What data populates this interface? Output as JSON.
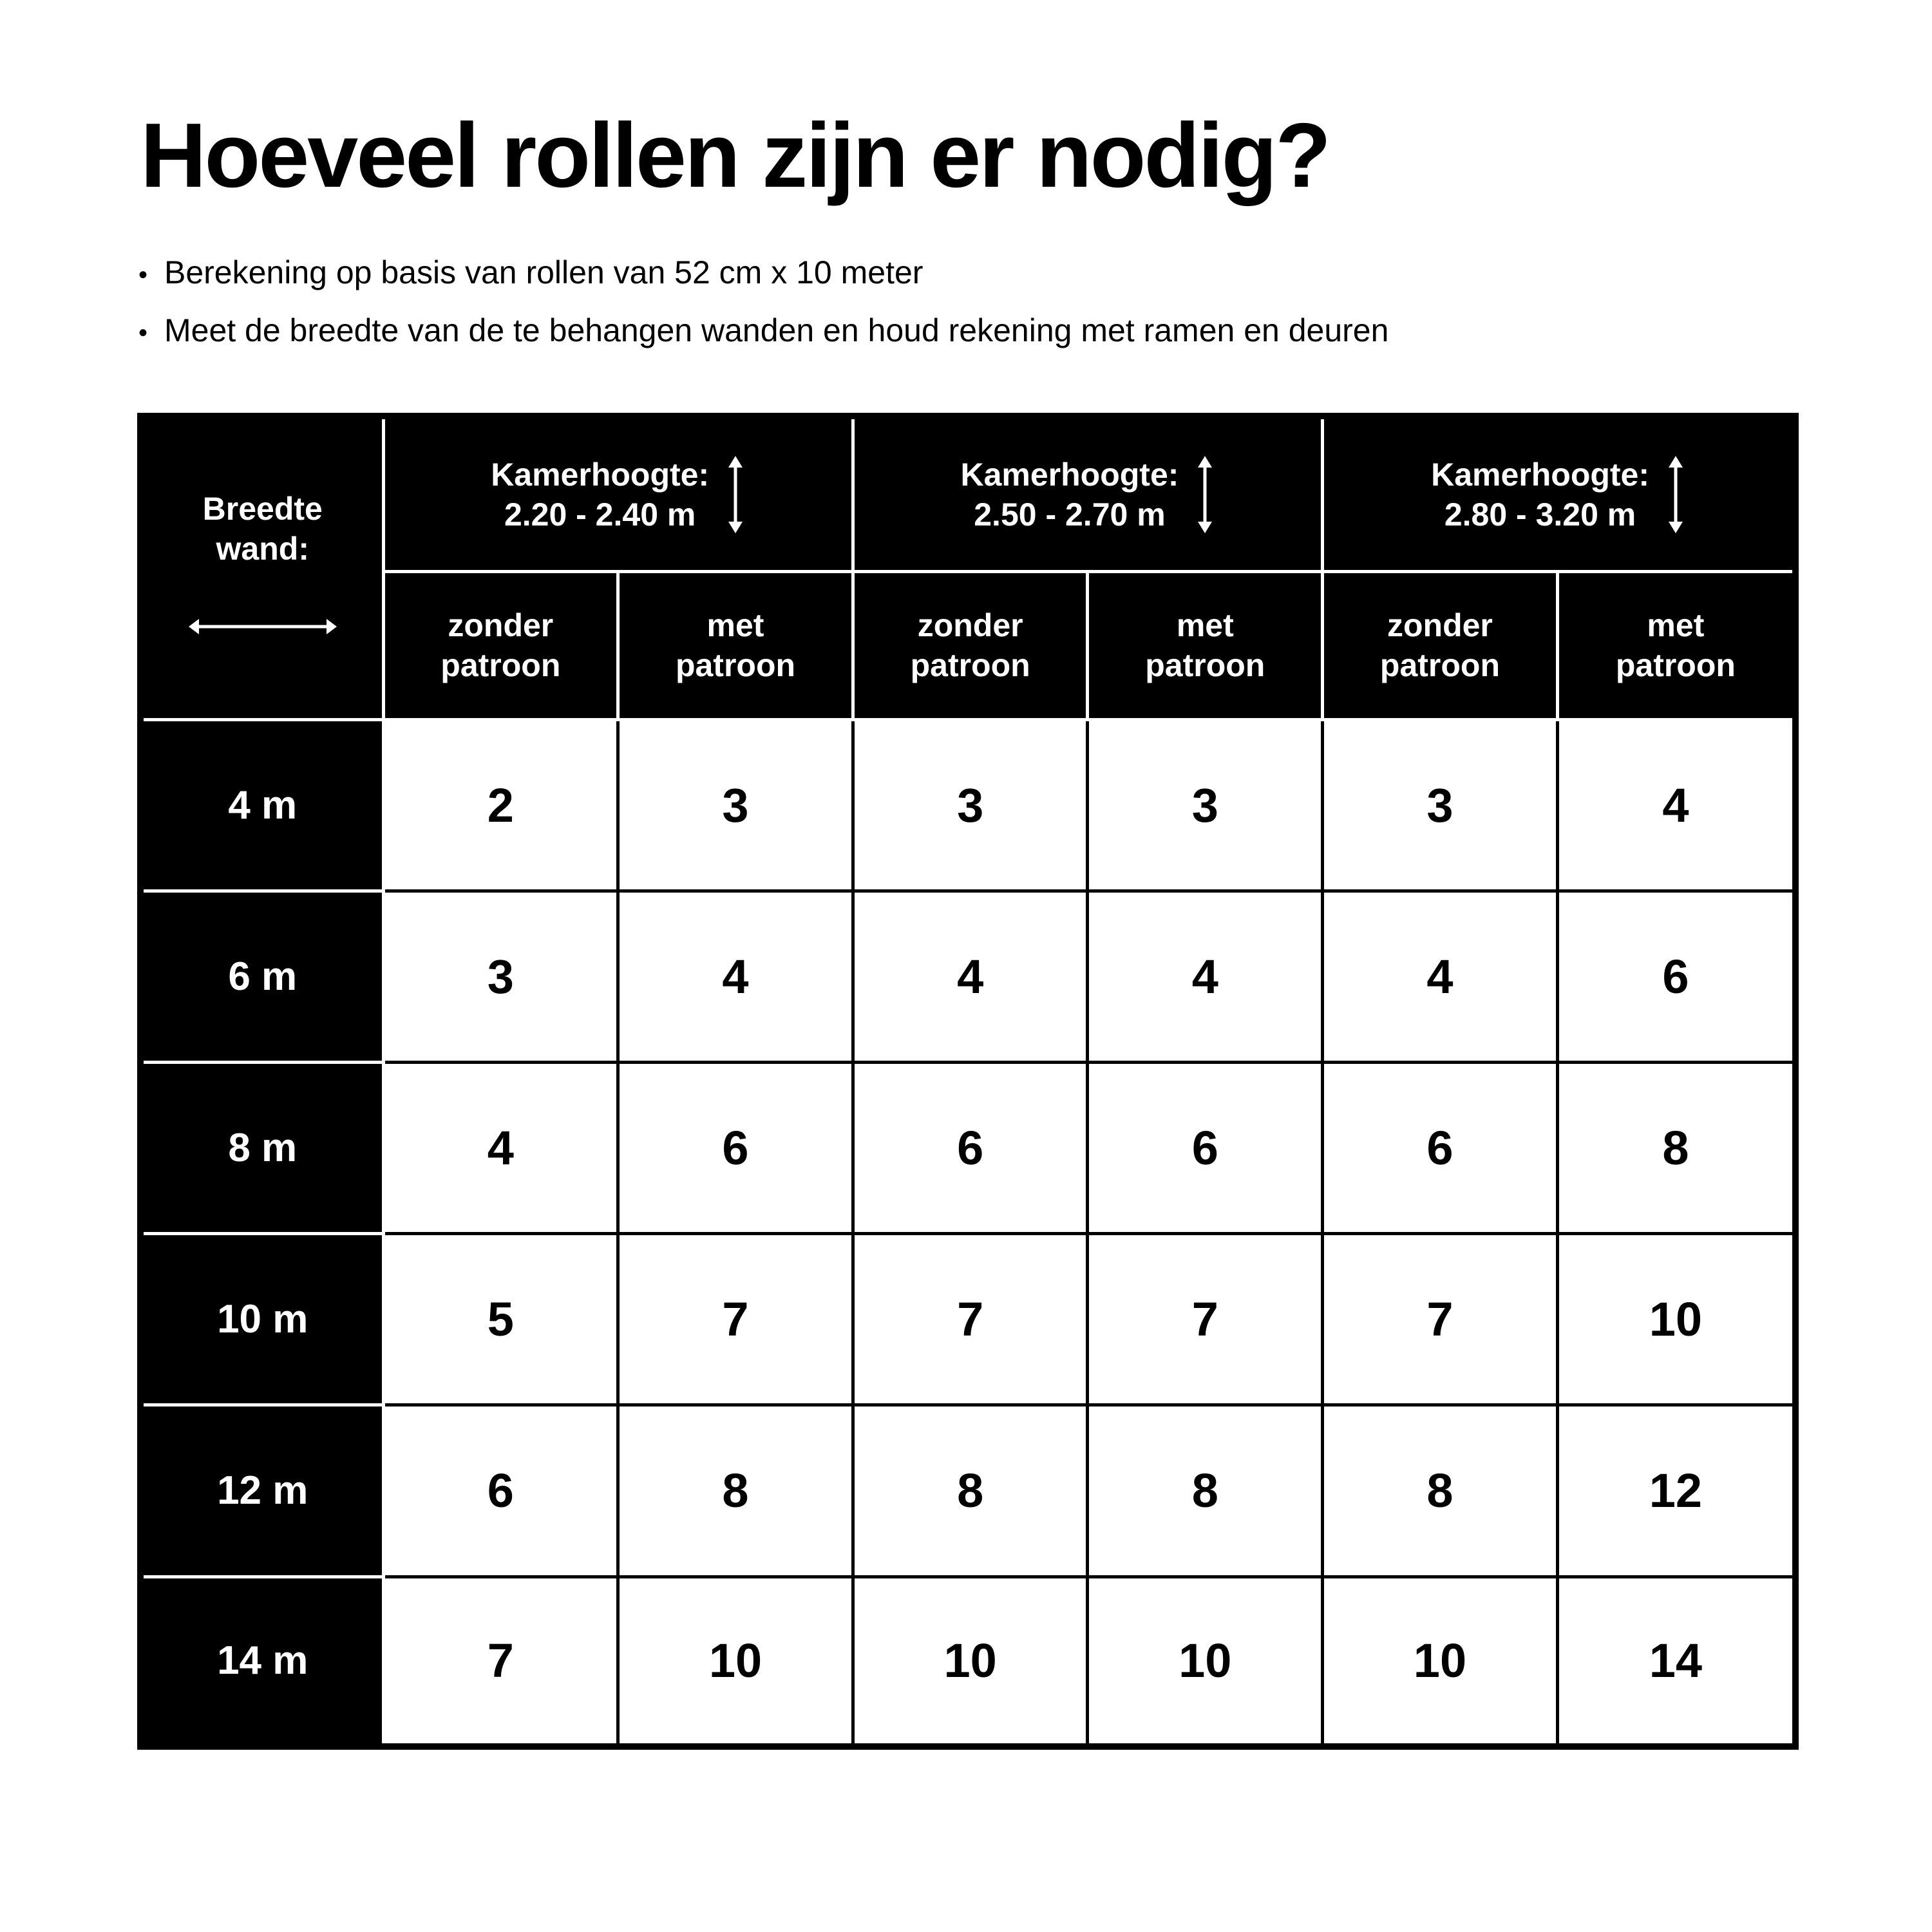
{
  "title": "Hoeveel rollen zijn er nodig?",
  "bullets": [
    "Berekening op basis van rollen van 52 cm x 10 meter",
    "Meet de breedte van de te behangen wanden en houd rekening met ramen en deuren"
  ],
  "table": {
    "row_header_label": [
      "Breedte",
      "wand:"
    ],
    "height_groups": [
      {
        "label": "Kamerhoogte:",
        "range": "2.20 - 2.40 m"
      },
      {
        "label": "Kamerhoogte:",
        "range": "2.50 - 2.70 m"
      },
      {
        "label": "Kamerhoogte:",
        "range": "2.80 - 3.20 m"
      }
    ],
    "sub_headers": [
      [
        "zonder",
        "patroon"
      ],
      [
        "met",
        "patroon"
      ],
      [
        "zonder",
        "patroon"
      ],
      [
        "met",
        "patroon"
      ],
      [
        "zonder",
        "patroon"
      ],
      [
        "met",
        "patroon"
      ]
    ],
    "rows": [
      {
        "width": "4 m",
        "values": [
          "2",
          "3",
          "3",
          "3",
          "3",
          "4"
        ]
      },
      {
        "width": "6 m",
        "values": [
          "3",
          "4",
          "4",
          "4",
          "4",
          "6"
        ]
      },
      {
        "width": "8 m",
        "values": [
          "4",
          "6",
          "6",
          "6",
          "6",
          "8"
        ]
      },
      {
        "width": "10 m",
        "values": [
          "5",
          "7",
          "7",
          "7",
          "7",
          "10"
        ]
      },
      {
        "width": "12 m",
        "values": [
          "6",
          "8",
          "8",
          "8",
          "8",
          "12"
        ]
      },
      {
        "width": "14 m",
        "values": [
          "7",
          "10",
          "10",
          "10",
          "10",
          "14"
        ]
      }
    ]
  }
}
